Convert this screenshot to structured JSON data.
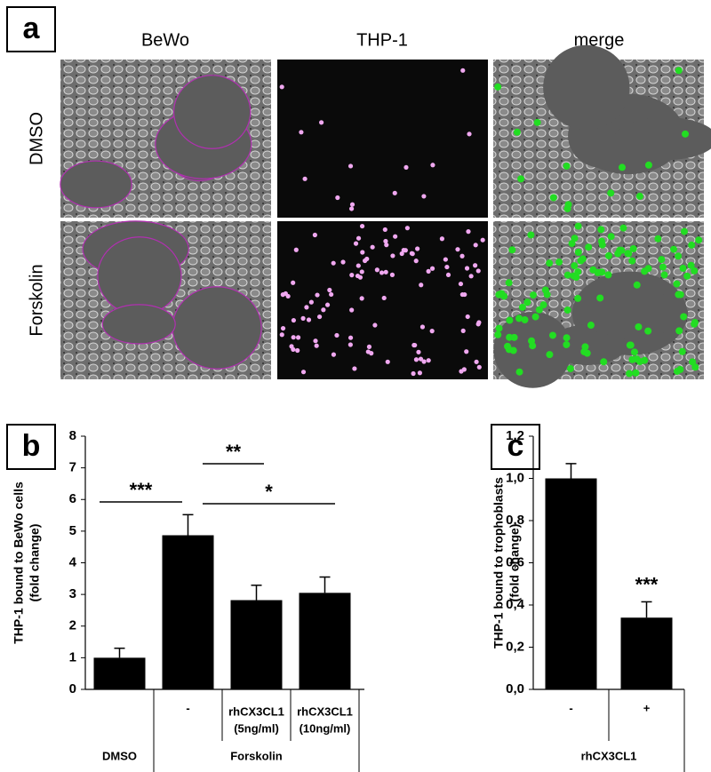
{
  "panel_a": {
    "label": "a",
    "columns": [
      "BeWo",
      "THP-1",
      "merge"
    ],
    "rows": [
      "DMSO",
      "Forskolin"
    ]
  },
  "chart_data": [
    {
      "type": "bar",
      "label": "b",
      "ylabel": [
        "THP-1 bound to BeWo cells",
        "(fold change)"
      ],
      "categories": [
        null,
        "-",
        [
          "rhCX3CL1",
          "(5ng/ml)"
        ],
        [
          "rhCX3CL1",
          "(10ng/ml)"
        ]
      ],
      "groups": [
        "DMSO",
        "Forskolin"
      ],
      "values": [
        1.0,
        4.87,
        2.82,
        3.05
      ],
      "errors": [
        0.3,
        0.65,
        0.47,
        0.5
      ],
      "color": "#000000",
      "ylim": [
        0,
        8
      ],
      "yticks": [
        0,
        1,
        2,
        3,
        4,
        5,
        6,
        7,
        8
      ],
      "annotations": [
        "***",
        "**",
        "*"
      ]
    },
    {
      "type": "bar",
      "label": "c",
      "ylabel": [
        "THP-1 bound to trophoblasts",
        "(fold change)"
      ],
      "categories": [
        "-",
        "+"
      ],
      "groups": [
        "rhCX3CL1"
      ],
      "values": [
        1.0,
        0.34
      ],
      "errors": [
        0.07,
        0.075
      ],
      "color": "#000000",
      "ylim": [
        0,
        1.2
      ],
      "yticks": [
        {
          "value": 0,
          "label": "0,0"
        },
        {
          "value": 0.2,
          "label": "0,2"
        },
        {
          "value": 0.4,
          "label": "0,4"
        },
        {
          "value": 0.6,
          "label": "0,6"
        },
        {
          "value": 0.8,
          "label": "0,8"
        },
        {
          "value": 1.0,
          "label": "1,0"
        },
        {
          "value": 1.2,
          "label": "1,2"
        }
      ],
      "annotations": [
        "***"
      ]
    }
  ]
}
